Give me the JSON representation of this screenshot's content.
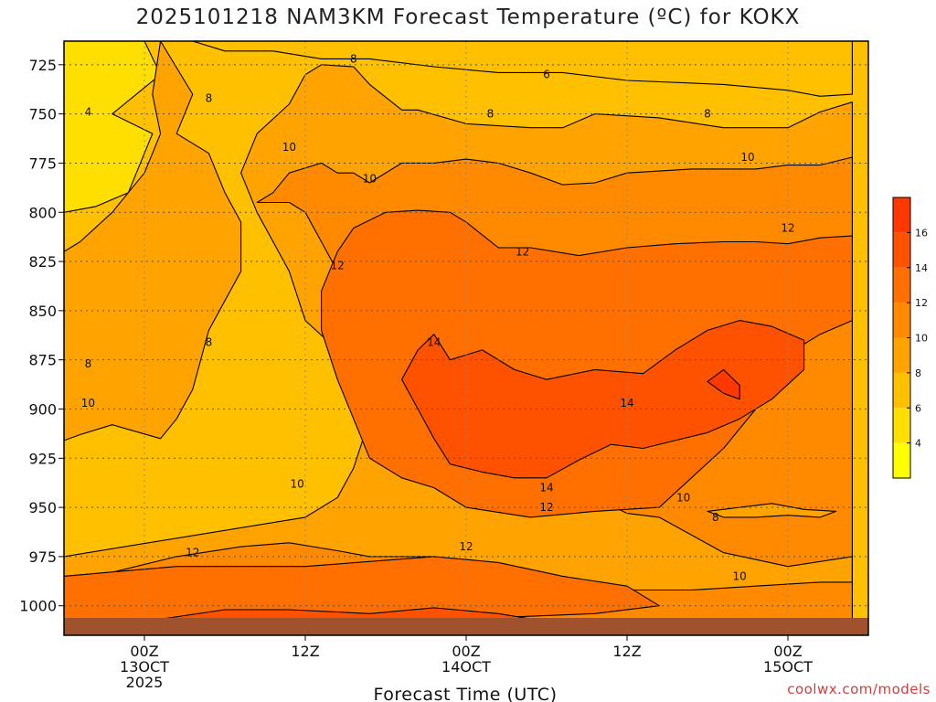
{
  "title": "2025101218 NAM3KM Forecast Temperature (ºC) for KOKX",
  "credit": "coolwx.com/models",
  "chart_data": {
    "type": "heatmap",
    "title": "2025101218 NAM3KM Forecast Temperature (ºC) for KOKX",
    "xlabel": "Forecast Time (UTC)",
    "ylabel": "",
    "x_range_hours": [
      -5,
      45
    ],
    "y_range_hPa": [
      1015,
      713
    ],
    "y_scale": "pressure (inverted)",
    "y_ticks": [
      725,
      750,
      775,
      800,
      825,
      850,
      875,
      900,
      925,
      950,
      975,
      1000
    ],
    "x_ticks": [
      {
        "hour": 0,
        "lines": [
          "00Z",
          "13OCT",
          "2025"
        ]
      },
      {
        "hour": 10,
        "lines": [
          "12Z"
        ]
      },
      {
        "hour": 20,
        "lines": [
          "00Z",
          "14OCT"
        ]
      },
      {
        "hour": 30,
        "lines": [
          "12Z"
        ]
      },
      {
        "hour": 40,
        "lines": [
          "00Z",
          "15OCT"
        ]
      }
    ],
    "grid": true,
    "colorbar": {
      "ticks": [
        4,
        6,
        8,
        10,
        12,
        14,
        16
      ],
      "bands": [
        {
          "min": 2,
          "max": 4,
          "color": "#ffff00"
        },
        {
          "min": 4,
          "max": 6,
          "color": "#ffdf00"
        },
        {
          "min": 6,
          "max": 8,
          "color": "#ffc000"
        },
        {
          "min": 8,
          "max": 10,
          "color": "#ffa300"
        },
        {
          "min": 10,
          "max": 12,
          "color": "#ff8a00"
        },
        {
          "min": 12,
          "max": 14,
          "color": "#ff7000"
        },
        {
          "min": 14,
          "max": 16,
          "color": "#ff5200"
        },
        {
          "min": 16,
          "max": 18,
          "color": "#ff3800"
        }
      ]
    },
    "ground_color": "#a0522d",
    "levels": [
      {
        "level": 4,
        "color": "#ffdf00",
        "polygon": [
          [
            -5,
            713
          ],
          [
            0,
            713
          ],
          [
            1,
            730
          ],
          [
            -0.5,
            740
          ],
          [
            -2,
            750
          ],
          [
            0.5,
            760
          ],
          [
            -1,
            790
          ],
          [
            -3,
            797
          ],
          [
            -5,
            800
          ]
        ]
      },
      {
        "level": 8,
        "color": "#ffa300",
        "polygon": [
          [
            1,
            713
          ],
          [
            3,
            740
          ],
          [
            2,
            760
          ],
          [
            4,
            770
          ],
          [
            5,
            790
          ],
          [
            6,
            805
          ],
          [
            6,
            830
          ],
          [
            4,
            860
          ],
          [
            3,
            890
          ],
          [
            2,
            905
          ],
          [
            1,
            915
          ],
          [
            -2,
            908
          ],
          [
            -4,
            913
          ],
          [
            -5,
            916
          ],
          [
            -5,
            820
          ],
          [
            -4,
            815
          ],
          [
            -2,
            800
          ],
          [
            -1,
            790
          ],
          [
            0,
            780
          ],
          [
            1,
            760
          ],
          [
            0.5,
            740
          ]
        ]
      },
      {
        "level": 6,
        "color": "#ffc000",
        "polygon": [
          [
            3,
            713
          ],
          [
            44,
            713
          ],
          [
            44,
            740
          ],
          [
            42,
            741
          ],
          [
            40,
            738
          ],
          [
            36,
            735
          ],
          [
            30,
            733
          ],
          [
            26,
            729
          ],
          [
            22,
            729
          ],
          [
            18,
            726
          ],
          [
            14,
            722
          ],
          [
            11,
            722
          ],
          [
            8,
            718
          ],
          [
            5,
            718
          ]
        ]
      },
      {
        "level": 8,
        "color": "#ffa300",
        "polygon": [
          [
            13,
            726
          ],
          [
            14,
            735
          ],
          [
            16,
            748
          ],
          [
            17,
            748
          ],
          [
            20,
            755
          ],
          [
            24,
            757
          ],
          [
            26,
            757
          ],
          [
            28,
            750
          ],
          [
            32,
            752
          ],
          [
            36,
            757
          ],
          [
            40,
            757
          ],
          [
            42,
            749
          ],
          [
            44,
            744
          ],
          [
            44,
            1015
          ],
          [
            -5,
            1015
          ],
          [
            -5,
            975
          ],
          [
            10,
            955
          ],
          [
            12,
            945
          ],
          [
            13,
            930
          ],
          [
            14,
            905
          ],
          [
            14,
            885
          ],
          [
            12,
            870
          ],
          [
            10,
            855
          ],
          [
            9,
            830
          ],
          [
            8,
            815
          ],
          [
            7,
            800
          ],
          [
            6,
            780
          ],
          [
            7,
            760
          ],
          [
            9,
            745
          ],
          [
            10,
            730
          ],
          [
            11,
            725
          ]
        ]
      },
      {
        "level": 10,
        "color": "#ff8a00",
        "polygon": [
          [
            7,
            795
          ],
          [
            8,
            790
          ],
          [
            9,
            780
          ],
          [
            11,
            775
          ],
          [
            12,
            780
          ],
          [
            13,
            780
          ],
          [
            14,
            785
          ],
          [
            16,
            775
          ],
          [
            18,
            775
          ],
          [
            20,
            773
          ],
          [
            22,
            775
          ],
          [
            24,
            780
          ],
          [
            26,
            786
          ],
          [
            28,
            785
          ],
          [
            30,
            780
          ],
          [
            34,
            778
          ],
          [
            38,
            778
          ],
          [
            40,
            776
          ],
          [
            42,
            776
          ],
          [
            44,
            772
          ],
          [
            44,
            1015
          ],
          [
            -5,
            1015
          ],
          [
            -5,
            985
          ],
          [
            -2,
            983
          ],
          [
            2,
            975
          ],
          [
            6,
            970
          ],
          [
            9,
            968
          ],
          [
            12,
            972
          ],
          [
            14,
            975
          ],
          [
            18,
            975
          ],
          [
            22,
            980
          ],
          [
            26,
            988
          ],
          [
            30,
            992
          ],
          [
            34,
            992
          ],
          [
            38,
            990
          ],
          [
            42,
            988
          ],
          [
            44,
            988
          ],
          [
            44,
            975
          ],
          [
            40,
            980
          ],
          [
            36,
            973
          ],
          [
            32,
            955
          ],
          [
            30,
            953
          ],
          [
            28,
            945
          ],
          [
            25,
            930
          ],
          [
            22,
            920
          ],
          [
            20,
            910
          ],
          [
            19,
            895
          ],
          [
            18,
            880
          ],
          [
            16,
            865
          ],
          [
            14,
            850
          ],
          [
            12,
            830
          ],
          [
            11,
            815
          ],
          [
            10,
            800
          ],
          [
            9,
            795
          ]
        ]
      },
      {
        "level": 12,
        "color": "#ff7000",
        "polygon": [
          [
            12,
            820
          ],
          [
            13,
            808
          ],
          [
            15,
            800
          ],
          [
            17,
            799
          ],
          [
            19,
            800
          ],
          [
            20,
            805
          ],
          [
            22,
            818
          ],
          [
            24,
            818
          ],
          [
            27,
            822
          ],
          [
            30,
            818
          ],
          [
            33,
            816
          ],
          [
            36,
            815
          ],
          [
            38,
            815
          ],
          [
            40,
            816
          ],
          [
            42,
            813
          ],
          [
            44,
            812
          ],
          [
            44,
            855
          ],
          [
            42,
            862
          ],
          [
            40,
            872
          ],
          [
            38,
            900
          ],
          [
            36,
            920
          ],
          [
            34,
            935
          ],
          [
            32,
            950
          ],
          [
            28,
            952
          ],
          [
            24,
            955
          ],
          [
            20,
            950
          ],
          [
            18,
            940
          ],
          [
            16,
            935
          ],
          [
            14,
            925
          ],
          [
            13,
            905
          ],
          [
            12,
            885
          ],
          [
            11,
            860
          ],
          [
            11,
            840
          ]
        ]
      },
      {
        "level": 12,
        "color": "#ff7000",
        "polygon": [
          [
            -5,
            985
          ],
          [
            2,
            980
          ],
          [
            10,
            980
          ],
          [
            18,
            975
          ],
          [
            22,
            978
          ],
          [
            26,
            985
          ],
          [
            30,
            990
          ],
          [
            32,
            1000
          ],
          [
            28,
            1004
          ],
          [
            22,
            1006
          ],
          [
            16,
            1007
          ],
          [
            10,
            1008
          ],
          [
            2,
            1010
          ],
          [
            -5,
            1012
          ]
        ]
      },
      {
        "level": 14,
        "color": "#ff5200",
        "polygon": [
          [
            17,
            870
          ],
          [
            18,
            862
          ],
          [
            19,
            875
          ],
          [
            21,
            870
          ],
          [
            23,
            880
          ],
          [
            25,
            885
          ],
          [
            28,
            880
          ],
          [
            31,
            882
          ],
          [
            33,
            870
          ],
          [
            35,
            860
          ],
          [
            37,
            855
          ],
          [
            39,
            858
          ],
          [
            41,
            865
          ],
          [
            41,
            880
          ],
          [
            39,
            895
          ],
          [
            37,
            905
          ],
          [
            35,
            912
          ],
          [
            33,
            916
          ],
          [
            31,
            920
          ],
          [
            29,
            918
          ],
          [
            27,
            926
          ],
          [
            25,
            935
          ],
          [
            23,
            935
          ],
          [
            21,
            932
          ],
          [
            19,
            928
          ],
          [
            18,
            915
          ],
          [
            17,
            900
          ],
          [
            16,
            885
          ]
        ]
      },
      {
        "level": 14,
        "color": "#ff5200",
        "polygon": [
          [
            0,
            1008
          ],
          [
            5,
            1002
          ],
          [
            9,
            1002
          ],
          [
            14,
            1004
          ],
          [
            18,
            1001
          ],
          [
            22,
            1004
          ],
          [
            25,
            1008
          ]
        ]
      },
      {
        "level": 16,
        "color": "#ff3800",
        "polygon": [
          [
            36,
            892
          ],
          [
            35,
            886
          ],
          [
            36,
            880
          ],
          [
            37,
            888
          ],
          [
            37,
            895
          ]
        ]
      },
      {
        "level": 8,
        "color": "#ffa300",
        "polygon": [
          [
            35,
            952
          ],
          [
            37,
            950
          ],
          [
            39,
            948
          ],
          [
            41,
            951
          ],
          [
            43,
            952
          ],
          [
            42,
            955
          ],
          [
            40,
            954
          ],
          [
            38,
            955
          ],
          [
            36,
            955
          ]
        ]
      }
    ],
    "contour_labels": [
      {
        "value": 4,
        "hour": -3.5,
        "hPa": 749
      },
      {
        "value": 8,
        "hour": 4,
        "hPa": 742
      },
      {
        "value": 8,
        "hour": 13,
        "hPa": 722
      },
      {
        "value": 6,
        "hour": 25,
        "hPa": 730
      },
      {
        "value": 8,
        "hour": 21.5,
        "hPa": 750
      },
      {
        "value": 8,
        "hour": 35,
        "hPa": 750
      },
      {
        "value": 10,
        "hour": 9,
        "hPa": 767
      },
      {
        "value": 10,
        "hour": 14,
        "hPa": 783
      },
      {
        "value": 10,
        "hour": 37.5,
        "hPa": 772
      },
      {
        "value": 12,
        "hour": 40,
        "hPa": 808
      },
      {
        "value": 12,
        "hour": 23.5,
        "hPa": 820
      },
      {
        "value": 12,
        "hour": 12,
        "hPa": 827
      },
      {
        "value": 14,
        "hour": 18,
        "hPa": 866
      },
      {
        "value": 8,
        "hour": 4,
        "hPa": 866
      },
      {
        "value": 8,
        "hour": -3.5,
        "hPa": 877
      },
      {
        "value": 14,
        "hour": 30,
        "hPa": 897
      },
      {
        "value": 10,
        "hour": -3.5,
        "hPa": 897
      },
      {
        "value": 10,
        "hour": 9.5,
        "hPa": 938
      },
      {
        "value": 14,
        "hour": 25,
        "hPa": 940
      },
      {
        "value": 12,
        "hour": 25,
        "hPa": 950
      },
      {
        "value": 10,
        "hour": 33.5,
        "hPa": 945
      },
      {
        "value": 8,
        "hour": 35.5,
        "hPa": 955
      },
      {
        "value": 12,
        "hour": 3,
        "hPa": 973
      },
      {
        "value": 12,
        "hour": 20,
        "hPa": 970
      },
      {
        "value": 10,
        "hour": 37,
        "hPa": 985
      }
    ]
  }
}
